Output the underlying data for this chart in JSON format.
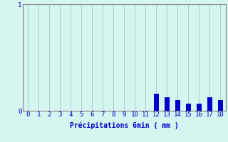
{
  "categories": [
    0,
    1,
    2,
    3,
    4,
    5,
    6,
    7,
    8,
    9,
    10,
    11,
    12,
    13,
    14,
    15,
    16,
    17,
    18
  ],
  "values": [
    0,
    0,
    0,
    0,
    0,
    0,
    0,
    0,
    0,
    0,
    0,
    0,
    0.16,
    0.13,
    0.1,
    0.07,
    0.07,
    0.13,
    0.1
  ],
  "bar_color": "#0000cc",
  "background_color": "#d5f5f0",
  "grid_color": "#aacfcf",
  "axis_color": "#808080",
  "text_color": "#0000cc",
  "xlabel": "Précipitations 6min ( mm )",
  "ylim": [
    0,
    1
  ],
  "xlim": [
    -0.5,
    18.5
  ],
  "yticks": [
    0,
    1
  ],
  "xticks": [
    0,
    1,
    2,
    3,
    4,
    5,
    6,
    7,
    8,
    9,
    10,
    11,
    12,
    13,
    14,
    15,
    16,
    17,
    18
  ],
  "bar_width": 0.5,
  "label_fontsize": 7,
  "tick_fontsize": 6.5
}
